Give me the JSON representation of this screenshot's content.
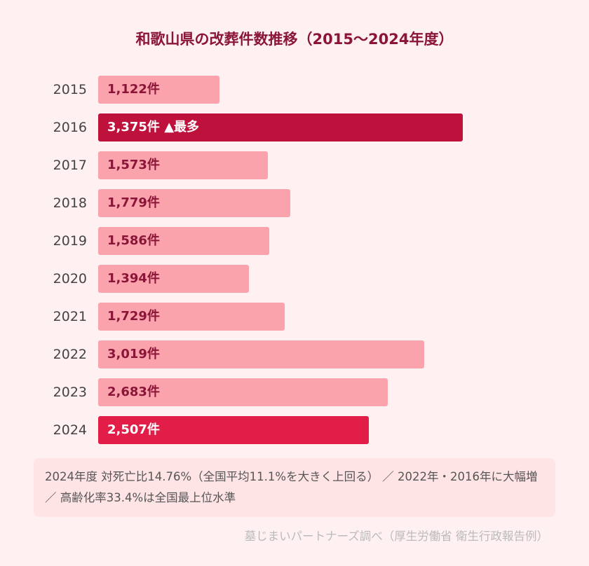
{
  "chart_data": {
    "type": "bar",
    "orientation": "horizontal",
    "title": "和歌山県の改葬件数推移（2015〜2024年度）",
    "categories": [
      "2015",
      "2016",
      "2017",
      "2018",
      "2019",
      "2020",
      "2021",
      "2022",
      "2023",
      "2024"
    ],
    "values": [
      1122,
      3375,
      1573,
      1779,
      1586,
      1394,
      1729,
      3019,
      2683,
      2507
    ],
    "labels": [
      "1,122件",
      "3,375件 ▲最多",
      "1,573件",
      "1,779件",
      "1,586件",
      "1,394件",
      "1,729件",
      "3,019件",
      "2,683件",
      "2,507件"
    ],
    "highlight": {
      "2016": "max",
      "2024": "latest"
    },
    "xlim": [
      0,
      3375
    ],
    "colors": {
      "default": "#fba3ad",
      "max": "#be123c",
      "latest": "#e11d48",
      "default_text": "#8b1538",
      "highlight_text": "#ffffff"
    }
  },
  "note": "2024年度 対死亡比14.76%（全国平均11.1%を大きく上回る） ／ 2022年・2016年に大幅増 ／ 高齢化率33.4%は全国最上位水準",
  "source": "墓じまいパートナーズ調べ（厚生労働省 衛生行政報告例）"
}
